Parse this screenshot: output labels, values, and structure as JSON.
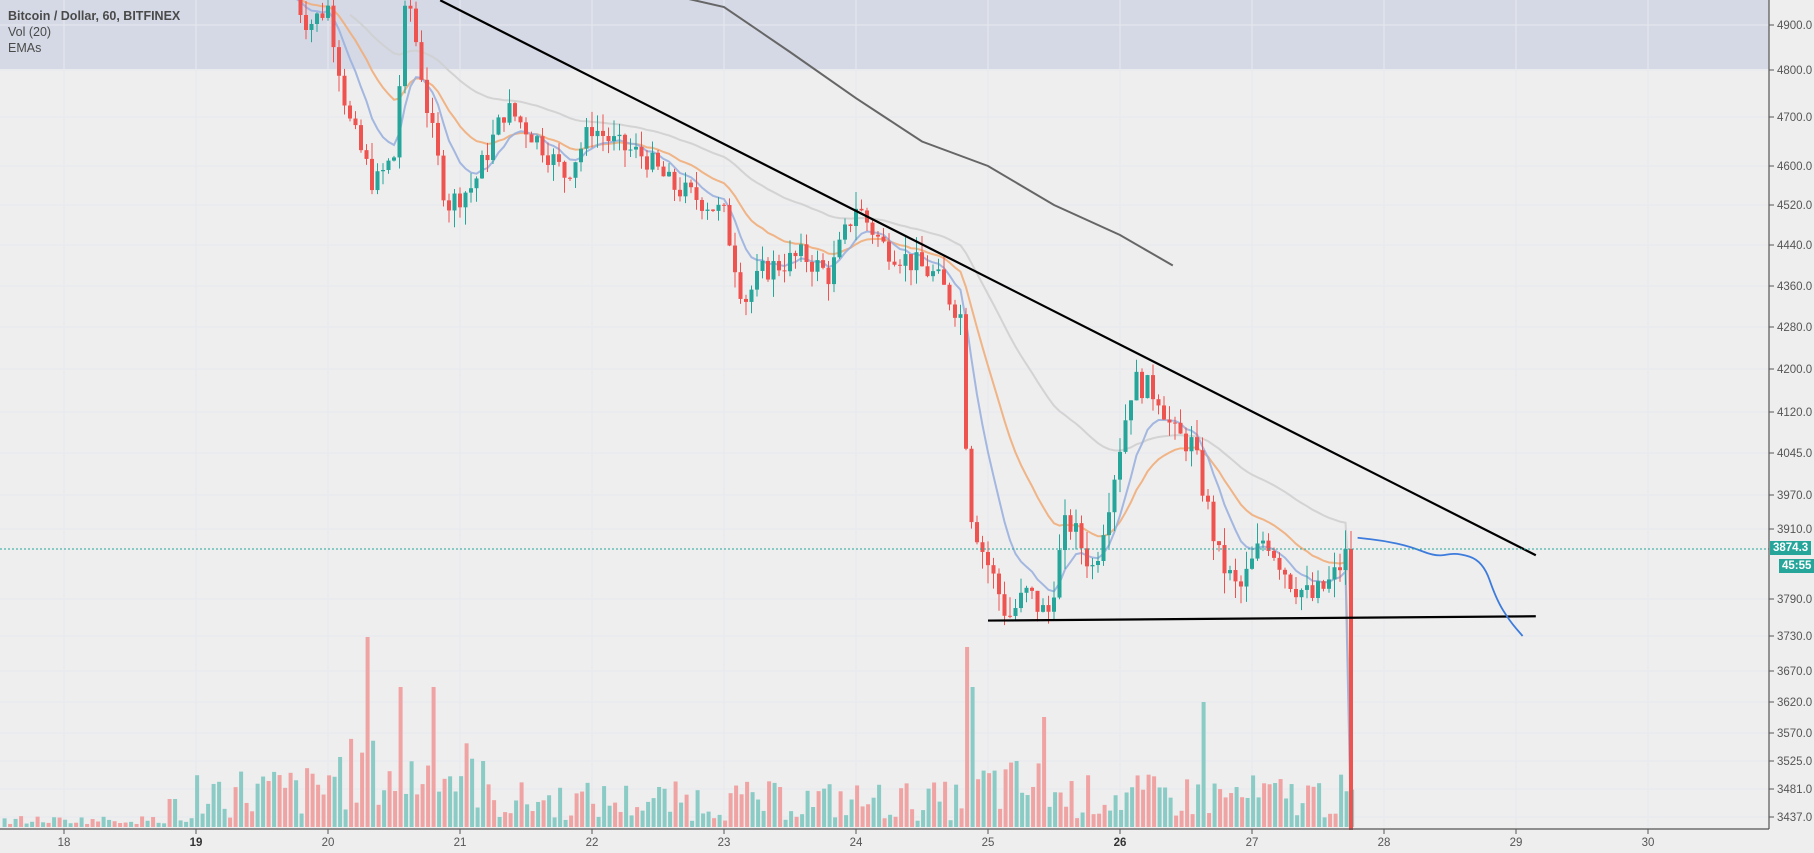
{
  "legend": {
    "title": "Bitcoin / Dollar, 60, BITFINEX",
    "volume": "Vol (20)",
    "emas": "EMAs"
  },
  "price_tag": {
    "value": "3874.3",
    "countdown": "45:55"
  },
  "colors": {
    "up": "#26a69a",
    "down": "#ef5350",
    "vol_up": "#8bcbc5",
    "vol_down": "#f0a3a3",
    "ema_fast": "#9ab0de",
    "ema_mid": "#f0ad7a",
    "ema_slow": "#cfcfcf",
    "ema_200": "#666666",
    "trendline": "#000000",
    "projection": "#3d7bdc",
    "band": "#d5d9e5",
    "background": "#eeeeee"
  },
  "chart_data": {
    "type": "candlestick",
    "title": "Bitcoin / Dollar, 60, BITFINEX",
    "timeframe": "60",
    "exchange": "BITFINEX",
    "x_ticks": [
      "18",
      "19",
      "20",
      "21",
      "22",
      "23",
      "24",
      "25",
      "26",
      "27",
      "28",
      "29",
      "30"
    ],
    "bold_x_ticks": [
      "19",
      "26"
    ],
    "y_ticks": [
      4900.0,
      4800.0,
      4700.0,
      4600.0,
      4520.0,
      4440.0,
      4360.0,
      4280.0,
      4200.0,
      4120.0,
      4045.0,
      3970.0,
      3910.0,
      3790.0,
      3730.0,
      3670.0,
      3620.0,
      3570.0,
      3525.0,
      3481.0,
      3437.0
    ],
    "last_price": 3874.3,
    "price_path_anchors": [
      [
        19.75,
        4960
      ],
      [
        19.85,
        4900
      ],
      [
        20.0,
        4940
      ],
      [
        20.15,
        4700
      ],
      [
        20.35,
        4560
      ],
      [
        20.5,
        4620
      ],
      [
        20.6,
        4980
      ],
      [
        20.75,
        4720
      ],
      [
        20.9,
        4520
      ],
      [
        21.1,
        4560
      ],
      [
        21.35,
        4720
      ],
      [
        21.6,
        4650
      ],
      [
        21.8,
        4580
      ],
      [
        22.0,
        4680
      ],
      [
        22.2,
        4640
      ],
      [
        22.4,
        4620
      ],
      [
        22.6,
        4560
      ],
      [
        22.9,
        4520
      ],
      [
        23.0,
        4500
      ],
      [
        23.15,
        4330
      ],
      [
        23.3,
        4390
      ],
      [
        23.6,
        4420
      ],
      [
        23.8,
        4380
      ],
      [
        24.0,
        4520
      ],
      [
        24.2,
        4440
      ],
      [
        24.4,
        4410
      ],
      [
        24.6,
        4380
      ],
      [
        24.8,
        4300
      ],
      [
        24.85,
        3960
      ],
      [
        24.95,
        3880
      ],
      [
        25.15,
        3760
      ],
      [
        25.3,
        3800
      ],
      [
        25.45,
        3760
      ],
      [
        25.6,
        3930
      ],
      [
        25.8,
        3840
      ],
      [
        25.95,
        4000
      ],
      [
        26.1,
        4180
      ],
      [
        26.3,
        4150
      ],
      [
        26.4,
        4080
      ],
      [
        26.55,
        4060
      ],
      [
        26.75,
        3860
      ],
      [
        26.9,
        3800
      ],
      [
        27.1,
        3900
      ],
      [
        27.3,
        3820
      ],
      [
        27.45,
        3790
      ],
      [
        27.6,
        3820
      ],
      [
        27.75,
        3880
      ]
    ],
    "volume_note": "hourly volume bars, red = down candle, teal = up candle; spike near 20.3, 20.65 and 24.85",
    "ema_200_path": [
      [
        22.4,
        4980
      ],
      [
        23.0,
        4940
      ],
      [
        23.5,
        4840
      ],
      [
        24.0,
        4740
      ],
      [
        24.5,
        4650
      ],
      [
        25.0,
        4600
      ],
      [
        25.5,
        4520
      ],
      [
        26.0,
        4460
      ],
      [
        26.4,
        4400
      ]
    ],
    "trendlines": [
      {
        "name": "descending-resistance",
        "from": [
          20.85,
          4955
        ],
        "to": [
          29.15,
          3865
        ]
      },
      {
        "name": "horizontal-support",
        "from": [
          25.0,
          3755
        ],
        "to": [
          29.15,
          3762
        ]
      }
    ],
    "projection_path": [
      [
        27.8,
        3895
      ],
      [
        28.0,
        3890
      ],
      [
        28.2,
        3880
      ],
      [
        28.4,
        3862
      ],
      [
        28.55,
        3870
      ],
      [
        28.75,
        3855
      ],
      [
        28.85,
        3790
      ],
      [
        28.95,
        3755
      ],
      [
        29.05,
        3730
      ]
    ],
    "xlabel": "",
    "ylabel": ""
  }
}
